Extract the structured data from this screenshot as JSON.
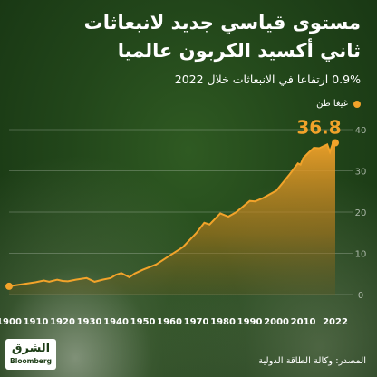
{
  "title_line1": "مستوى قياسي جديد لانبعاثات",
  "title_line2": "ثاني أكسيد الكربون عالميا",
  "subtitle": "0.9% ارتفاعا في الانبعاثات خلال 2022",
  "source": "المصدر: وكالة الطاقة الدولية",
  "logo": {
    "arabic": "الشرق",
    "english": "Bloomberg"
  },
  "colors": {
    "accent": "#f2a32a",
    "background": "#22461a",
    "text": "#ffffff"
  },
  "chart_data": {
    "type": "area",
    "legend": [
      "غيغا طن"
    ],
    "legend_position": "top-right",
    "x": [
      1900,
      1905,
      1910,
      1913,
      1915,
      1918,
      1920,
      1922,
      1925,
      1929,
      1930,
      1932,
      1935,
      1938,
      1940,
      1942,
      1945,
      1947,
      1950,
      1955,
      1960,
      1965,
      1970,
      1973,
      1975,
      1979,
      1980,
      1982,
      1985,
      1990,
      1992,
      1995,
      2000,
      2005,
      2008,
      2009,
      2010,
      2012,
      2014,
      2016,
      2019,
      2020,
      2021,
      2022
    ],
    "series": [
      {
        "values": [
          2.0,
          2.5,
          3.0,
          3.4,
          3.1,
          3.6,
          3.3,
          3.2,
          3.6,
          4.0,
          3.7,
          3.1,
          3.6,
          4.0,
          4.8,
          5.2,
          4.2,
          5.1,
          6.0,
          7.3,
          9.4,
          11.5,
          14.9,
          17.4,
          17.0,
          19.7,
          19.4,
          18.9,
          20.0,
          22.7,
          22.6,
          23.4,
          25.2,
          29.2,
          31.8,
          31.5,
          33.1,
          34.4,
          35.6,
          35.5,
          36.4,
          34.6,
          36.5,
          36.8
        ]
      }
    ],
    "final_label": "36.8",
    "xticks": [
      "1900",
      "1910",
      "1920",
      "1930",
      "1940",
      "1950",
      "1960",
      "1970",
      "1980",
      "1990",
      "2000",
      "2010",
      "2022"
    ],
    "yticks": [
      "0",
      "10",
      "20",
      "30",
      "40"
    ],
    "xlim": [
      1900,
      2022
    ],
    "ylim": [
      0,
      40
    ],
    "grid": true
  }
}
